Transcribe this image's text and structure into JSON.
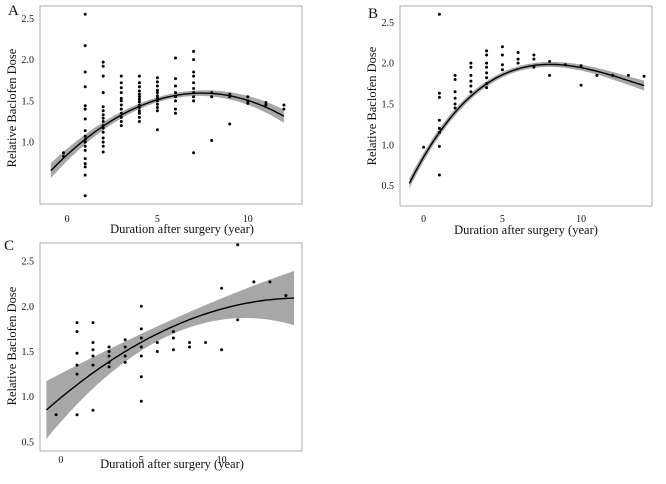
{
  "chart_data": [
    {
      "type": "scatter",
      "panel": "A",
      "xlabel": "Duration after surgery (year)",
      "ylabel": "Relative Baclofen Dose",
      "xlim": [
        -1.5,
        13
      ],
      "ylim": [
        0.25,
        2.65
      ],
      "x_ticks": [
        "0",
        "5",
        "10"
      ],
      "x_tick_values": [
        0,
        5,
        10
      ],
      "y_ticks": [
        "1.0",
        "1.5",
        "2.0",
        "2.5"
      ],
      "y_tick_values": [
        1.0,
        1.5,
        2.0,
        2.5
      ],
      "fit": {
        "type": "polynomial",
        "coefficients": [
          0.846,
          0.201,
          -0.0135
        ],
        "x_range": [
          -0.9,
          12
        ],
        "band_halfwidth": [
          0.09,
          0.03,
          0.08
        ]
      },
      "points": [
        [
          -0.2,
          0.83
        ],
        [
          -0.2,
          0.87
        ],
        [
          1,
          2.55
        ],
        [
          1,
          2.17
        ],
        [
          1,
          1.85
        ],
        [
          1,
          1.67
        ],
        [
          1,
          1.44
        ],
        [
          1,
          1.4
        ],
        [
          1,
          1.28
        ],
        [
          1,
          1.14
        ],
        [
          1,
          1.07
        ],
        [
          1,
          1.03
        ],
        [
          1,
          1.0
        ],
        [
          1,
          0.95
        ],
        [
          1,
          0.9
        ],
        [
          1,
          0.8
        ],
        [
          1,
          0.74
        ],
        [
          1,
          0.7
        ],
        [
          1,
          0.6
        ],
        [
          1,
          0.35
        ],
        [
          2,
          1.97
        ],
        [
          2,
          1.92
        ],
        [
          2,
          1.8
        ],
        [
          2,
          1.6
        ],
        [
          2,
          1.43
        ],
        [
          2,
          1.38
        ],
        [
          2,
          1.33
        ],
        [
          2,
          1.29
        ],
        [
          2,
          1.25
        ],
        [
          2,
          1.2
        ],
        [
          2,
          1.17
        ],
        [
          2,
          1.12
        ],
        [
          2,
          1.05
        ],
        [
          2,
          1.0
        ],
        [
          2,
          0.95
        ],
        [
          2,
          0.88
        ],
        [
          3,
          1.8
        ],
        [
          3,
          1.72
        ],
        [
          3,
          1.66
        ],
        [
          3,
          1.6
        ],
        [
          3,
          1.53
        ],
        [
          3,
          1.5
        ],
        [
          3,
          1.45
        ],
        [
          3,
          1.4
        ],
        [
          3,
          1.35
        ],
        [
          3,
          1.3
        ],
        [
          3,
          1.25
        ],
        [
          3,
          1.2
        ],
        [
          4,
          1.8
        ],
        [
          4,
          1.72
        ],
        [
          4,
          1.67
        ],
        [
          4,
          1.62
        ],
        [
          4,
          1.58
        ],
        [
          4,
          1.55
        ],
        [
          4,
          1.52
        ],
        [
          4,
          1.49
        ],
        [
          4,
          1.45
        ],
        [
          4,
          1.42
        ],
        [
          4,
          1.38
        ],
        [
          4,
          1.35
        ],
        [
          4,
          1.3
        ],
        [
          4,
          1.25
        ],
        [
          5,
          1.78
        ],
        [
          5,
          1.73
        ],
        [
          5,
          1.68
        ],
        [
          5,
          1.63
        ],
        [
          5,
          1.6
        ],
        [
          5,
          1.56
        ],
        [
          5,
          1.53
        ],
        [
          5,
          1.5
        ],
        [
          5,
          1.46
        ],
        [
          5,
          1.42
        ],
        [
          5,
          1.38
        ],
        [
          5,
          1.15
        ],
        [
          6,
          2.02
        ],
        [
          6,
          1.77
        ],
        [
          6,
          1.68
        ],
        [
          6,
          1.6
        ],
        [
          6,
          1.55
        ],
        [
          6,
          1.5
        ],
        [
          6,
          1.4
        ],
        [
          6,
          1.35
        ],
        [
          7,
          2.1
        ],
        [
          7,
          2.0
        ],
        [
          7,
          1.85
        ],
        [
          7,
          1.8
        ],
        [
          7,
          1.72
        ],
        [
          7,
          1.65
        ],
        [
          7,
          1.6
        ],
        [
          7,
          1.55
        ],
        [
          7,
          1.5
        ],
        [
          7,
          0.87
        ],
        [
          8,
          1.6
        ],
        [
          8,
          1.55
        ],
        [
          8,
          1.02
        ],
        [
          9,
          1.58
        ],
        [
          9,
          1.55
        ],
        [
          9,
          1.22
        ],
        [
          10,
          1.55
        ],
        [
          10,
          1.5
        ],
        [
          10,
          1.47
        ],
        [
          11,
          1.48
        ],
        [
          11,
          1.45
        ],
        [
          12,
          1.45
        ],
        [
          12,
          1.4
        ]
      ]
    },
    {
      "type": "scatter",
      "panel": "B",
      "xlabel": "Duration after surgery (year)",
      "ylabel": "Relative Baclofen Dose",
      "xlim": [
        -1.5,
        14.5
      ],
      "ylim": [
        0.25,
        2.7
      ],
      "x_ticks": [
        "0",
        "5",
        "10"
      ],
      "x_tick_values": [
        0,
        5,
        10
      ],
      "y_ticks": [
        "0.5",
        "1.0",
        "1.5",
        "2.0",
        "2.5"
      ],
      "y_tick_values": [
        0.5,
        1.0,
        1.5,
        2.0,
        2.5
      ],
      "fit": {
        "type": "cubic",
        "coefficients": [
          0.85,
          0.33,
          -0.0294,
          0.000735
        ],
        "x_range": [
          -0.9,
          14
        ],
        "band_halfwidth": [
          0.06,
          0.03,
          0.06
        ]
      },
      "points": [
        [
          0,
          0.97
        ],
        [
          1,
          2.6
        ],
        [
          1,
          1.63
        ],
        [
          1,
          1.58
        ],
        [
          1,
          1.3
        ],
        [
          1,
          1.2
        ],
        [
          1,
          1.15
        ],
        [
          1,
          0.98
        ],
        [
          1,
          0.63
        ],
        [
          2,
          1.85
        ],
        [
          2,
          1.8
        ],
        [
          2,
          1.65
        ],
        [
          2,
          1.57
        ],
        [
          2,
          1.5
        ],
        [
          2,
          1.45
        ],
        [
          3,
          2.0
        ],
        [
          3,
          1.95
        ],
        [
          3,
          1.85
        ],
        [
          3,
          1.78
        ],
        [
          3,
          1.72
        ],
        [
          3,
          1.65
        ],
        [
          4,
          2.15
        ],
        [
          4,
          2.1
        ],
        [
          4,
          2.0
        ],
        [
          4,
          1.95
        ],
        [
          4,
          1.88
        ],
        [
          4,
          1.82
        ],
        [
          4,
          1.75
        ],
        [
          4,
          1.7
        ],
        [
          5,
          2.2
        ],
        [
          5,
          2.1
        ],
        [
          5,
          1.98
        ],
        [
          5,
          1.92
        ],
        [
          6,
          2.13
        ],
        [
          6,
          2.05
        ],
        [
          6,
          2.0
        ],
        [
          7,
          2.1
        ],
        [
          7,
          2.05
        ],
        [
          7,
          1.95
        ],
        [
          8,
          2.02
        ],
        [
          8,
          1.85
        ],
        [
          9,
          1.98
        ],
        [
          10,
          1.97
        ],
        [
          10,
          1.73
        ],
        [
          11,
          1.85
        ],
        [
          12,
          1.85
        ],
        [
          13,
          1.85
        ],
        [
          14,
          1.84
        ]
      ]
    },
    {
      "type": "scatter",
      "panel": "C",
      "xlabel": "Duration after surgery (year)",
      "ylabel": "Relative Baclofen Dose",
      "xlim": [
        -1.3,
        15
      ],
      "ylim": [
        0.4,
        2.7
      ],
      "x_ticks": [
        "0",
        "5",
        "10"
      ],
      "x_tick_values": [
        0,
        5,
        10
      ],
      "y_ticks": [
        "0.5",
        "1.0",
        "1.5",
        "2.0",
        "2.5"
      ],
      "y_tick_values": [
        0.5,
        1.0,
        1.5,
        2.0,
        2.5
      ],
      "fit": {
        "type": "polynomial",
        "coefficients": [
          0.99,
          0.147,
          -0.0049
        ],
        "x_range": [
          -0.9,
          14.5
        ],
        "band_halfwidth": [
          0.32,
          0.08,
          0.3
        ]
      },
      "points": [
        [
          -0.3,
          0.8
        ],
        [
          1,
          1.82
        ],
        [
          1,
          1.72
        ],
        [
          1,
          1.48
        ],
        [
          1,
          1.35
        ],
        [
          1,
          1.25
        ],
        [
          1,
          0.8
        ],
        [
          2,
          1.82
        ],
        [
          2,
          1.6
        ],
        [
          2,
          1.52
        ],
        [
          2,
          1.45
        ],
        [
          2,
          1.35
        ],
        [
          2,
          0.85
        ],
        [
          3,
          1.55
        ],
        [
          3,
          1.5
        ],
        [
          3,
          1.45
        ],
        [
          3,
          1.38
        ],
        [
          3,
          1.33
        ],
        [
          4,
          1.63
        ],
        [
          4,
          1.55
        ],
        [
          4,
          1.45
        ],
        [
          4,
          1.38
        ],
        [
          5,
          2.0
        ],
        [
          5,
          1.75
        ],
        [
          5,
          1.65
        ],
        [
          5,
          1.55
        ],
        [
          5,
          1.45
        ],
        [
          5,
          1.22
        ],
        [
          5,
          0.95
        ],
        [
          6,
          1.6
        ],
        [
          6,
          1.5
        ],
        [
          7,
          1.72
        ],
        [
          7,
          1.65
        ],
        [
          7,
          1.52
        ],
        [
          8,
          1.6
        ],
        [
          8,
          1.55
        ],
        [
          9,
          1.6
        ],
        [
          10,
          2.2
        ],
        [
          10,
          1.52
        ],
        [
          11,
          2.68
        ],
        [
          11,
          1.85
        ],
        [
          12,
          2.27
        ],
        [
          13,
          2.27
        ],
        [
          14,
          2.12
        ]
      ]
    }
  ]
}
